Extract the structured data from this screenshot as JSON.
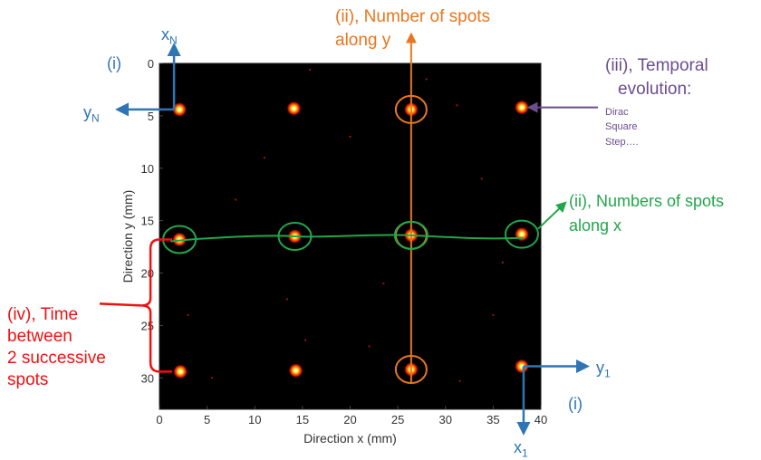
{
  "chart_data": {
    "type": "heatmap",
    "xlabel": "Direction x (mm)",
    "ylabel": "Direction y (mm)",
    "xlim": [
      0,
      40
    ],
    "ylim": [
      0,
      33
    ],
    "x_ticks": [
      0,
      5,
      10,
      15,
      20,
      25,
      30,
      35,
      40
    ],
    "y_ticks": [
      0,
      5,
      10,
      15,
      20,
      25,
      30
    ],
    "y_axis_inverted": true,
    "grid": false,
    "colormap": "hot",
    "spots": [
      {
        "x": 2.1,
        "y": 4.4
      },
      {
        "x": 14.1,
        "y": 4.3
      },
      {
        "x": 26.4,
        "y": 4.4
      },
      {
        "x": 38.0,
        "y": 4.2
      },
      {
        "x": 2.1,
        "y": 16.8
      },
      {
        "x": 14.2,
        "y": 16.5
      },
      {
        "x": 26.4,
        "y": 16.4
      },
      {
        "x": 38.0,
        "y": 16.3
      },
      {
        "x": 2.2,
        "y": 29.4
      },
      {
        "x": 14.3,
        "y": 29.3
      },
      {
        "x": 26.4,
        "y": 29.2
      },
      {
        "x": 38.0,
        "y": 28.9
      }
    ],
    "noise_points": [
      {
        "x": 15.8,
        "y": 0.6
      },
      {
        "x": 31.2,
        "y": 4.0
      },
      {
        "x": 33.8,
        "y": 11.0
      },
      {
        "x": 13.4,
        "y": 22.5
      },
      {
        "x": 3.0,
        "y": 24.0
      },
      {
        "x": 15.3,
        "y": 26.4
      },
      {
        "x": 23.5,
        "y": 21.0
      },
      {
        "x": 31.5,
        "y": 30.3
      },
      {
        "x": 8.0,
        "y": 13.0
      },
      {
        "x": 20.0,
        "y": 7.0
      },
      {
        "x": 35.0,
        "y": 24.0
      },
      {
        "x": 28.0,
        "y": 1.5
      },
      {
        "x": 5.5,
        "y": 30.0
      },
      {
        "x": 22.0,
        "y": 27.0
      },
      {
        "x": 36.0,
        "y": 19.0
      },
      {
        "x": 11.0,
        "y": 9.0
      }
    ]
  },
  "annotations": {
    "i_top": "(i)",
    "i_bottom": "(i)",
    "xN": "x",
    "xN_sub": "N",
    "yN": "y",
    "yN_sub": "N",
    "y1": "y",
    "y1_sub": "1",
    "x1": "x",
    "x1_sub": "1",
    "ii_y_line1": "(ii), Number of spots",
    "ii_y_line2": "along y",
    "ii_x_line1": "(ii), Numbers of spots",
    "ii_x_line2": "along x",
    "iii_line1": "(iii), Temporal",
    "iii_line2": "evolution:",
    "iii_items": [
      "Dirac",
      "Square",
      "Step…."
    ],
    "iv_line1": "(iv), Time",
    "iv_line2": "between",
    "iv_line3": "2 successive",
    "iv_line4": "spots"
  },
  "colors": {
    "blue": "#2e75b6",
    "orange": "#e8761e",
    "green": "#22a64a",
    "purple": "#6b4c8f",
    "red": "#ee1111"
  }
}
